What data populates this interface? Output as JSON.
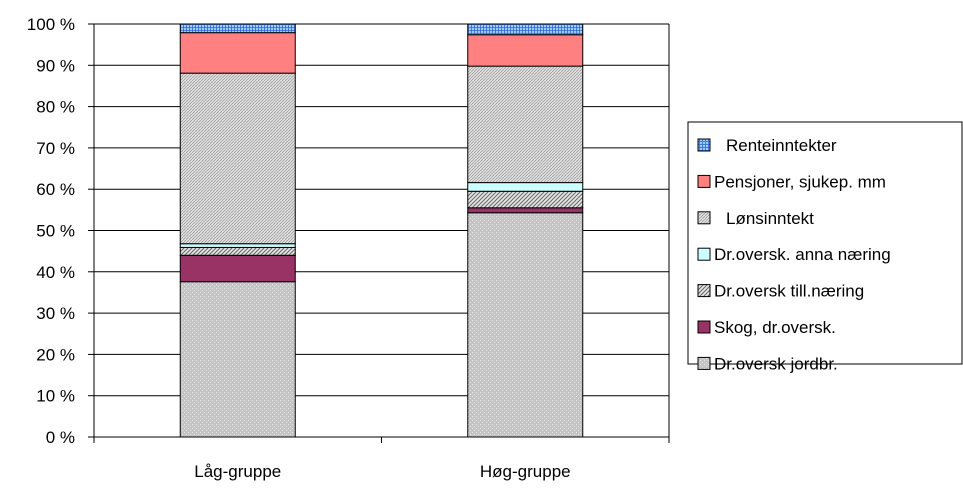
{
  "chart_data": {
    "type": "bar",
    "stacked": true,
    "normalized": true,
    "categories": [
      "Låg-gruppe",
      "Høg-gruppe"
    ],
    "y_ticks": [
      "0 %",
      "10 %",
      "20 %",
      "30 %",
      "40 %",
      "50 %",
      "60 %",
      "70 %",
      "80 %",
      "90 %",
      "100 %"
    ],
    "ylim": [
      0,
      100
    ],
    "grid": true,
    "legend_position": "right",
    "series": [
      {
        "name": "Dr.oversk jordbr.",
        "values": [
          37.6,
          54.3
        ],
        "color": "#c0c0c0",
        "pattern": "grey"
      },
      {
        "name": "Skog, dr.oversk.",
        "values": [
          6.4,
          1.2
        ],
        "color": "#993366",
        "pattern": "solid"
      },
      {
        "name": "Dr.oversk till.næring",
        "values": [
          1.9,
          4.0
        ],
        "color": "#cfcfcf",
        "pattern": "diagonal"
      },
      {
        "name": "Dr.oversk. anna næring",
        "values": [
          0.9,
          2.1
        ],
        "color": "#ccffff",
        "pattern": "solid"
      },
      {
        "name": "Lønsinntekt",
        "values": [
          41.3,
          28.2
        ],
        "color": "#dadada",
        "pattern": "fine"
      },
      {
        "name": "Pensjoner, sjukep. mm",
        "values": [
          9.8,
          7.6
        ],
        "color": "#ff8080",
        "pattern": "solid"
      },
      {
        "name": "Renteinntekter",
        "values": [
          2.1,
          2.6
        ],
        "color": "#99ccff",
        "pattern": "grid"
      }
    ],
    "legend_order": [
      "Renteinntekter",
      "Pensjoner, sjukep. mm",
      "Lønsinntekt",
      "Dr.oversk. anna næring",
      "Dr.oversk till.næring",
      "Skog, dr.oversk.",
      "Dr.oversk jordbr."
    ]
  }
}
